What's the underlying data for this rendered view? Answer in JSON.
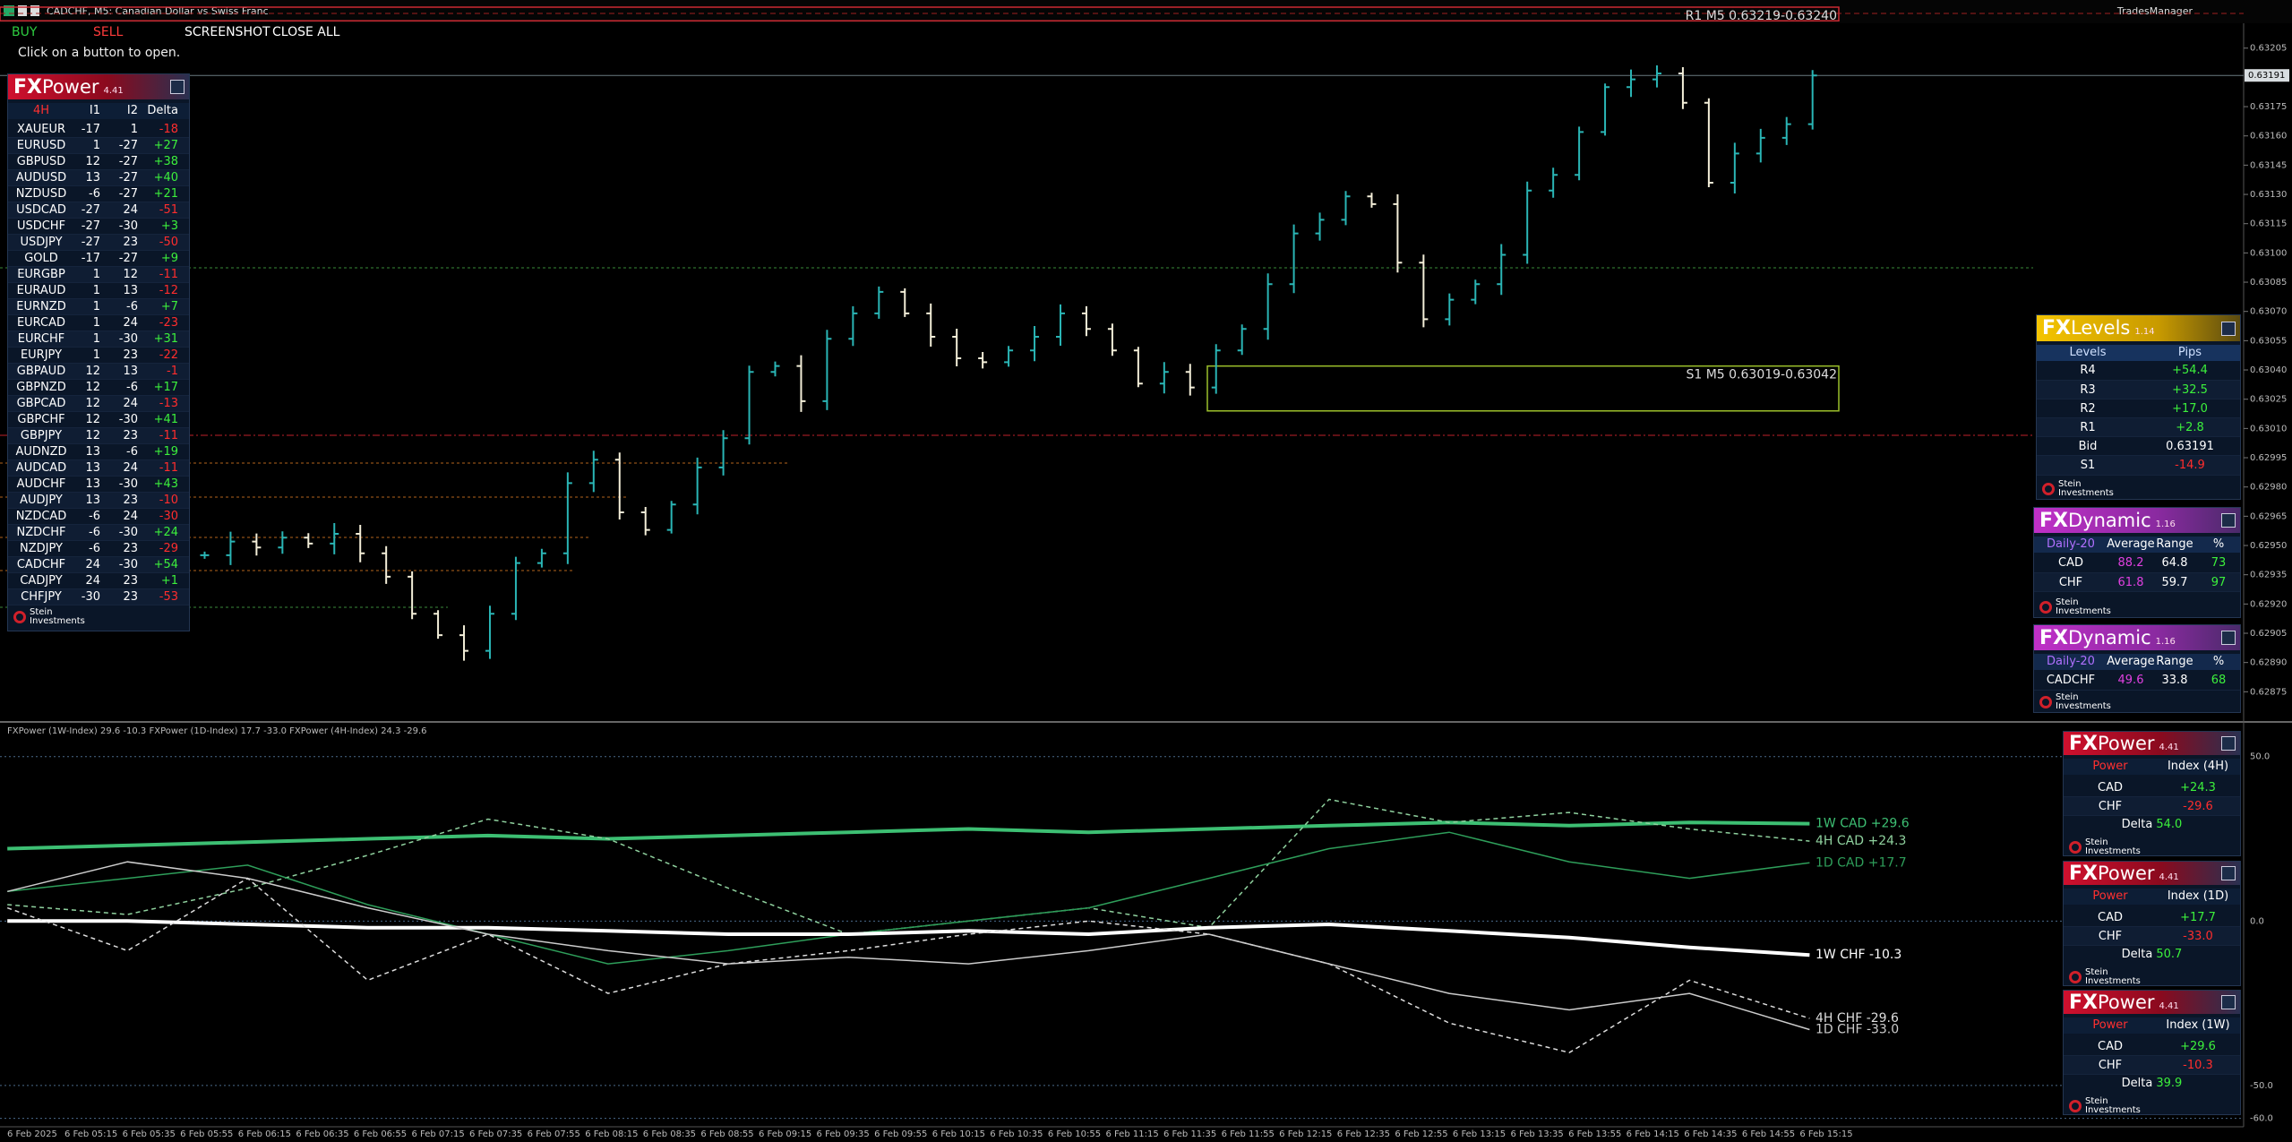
{
  "window": {
    "title": "CADCHF, M5:  Canadian Dollar vs Swiss Franc",
    "plugin": "TradesManager"
  },
  "toolbar": {
    "buttons": [
      "BUY",
      "SELL",
      "SCREENSHOT",
      "CLOSE ALL"
    ],
    "hint": "Click on a button to open."
  },
  "chart_data": [
    {
      "type": "ohlc",
      "ylim": [
        0.6286,
        0.63226
      ],
      "yticks": [
        0.63205,
        0.63175,
        {
          "value": 0.6316,
          "label": "0.63160"
        },
        0.63145,
        {
          "value": 0.6313,
          "label": "0.63130"
        },
        0.63115,
        {
          "value": 0.631,
          "label": "0.63100"
        },
        0.63085,
        {
          "value": 0.6307,
          "label": "0.63070"
        },
        0.63055,
        {
          "value": 0.6304,
          "label": "0.63040"
        },
        0.63025,
        {
          "value": 0.6301,
          "label": "0.63010"
        },
        0.62995,
        {
          "value": 0.6298,
          "label": "0.62980"
        },
        0.62965,
        {
          "value": 0.6295,
          "label": "0.62950"
        },
        0.62935,
        {
          "value": 0.6292,
          "label": "0.62920"
        },
        0.62905,
        {
          "value": 0.6289,
          "label": "0.62890"
        },
        0.62875
      ],
      "bid": 0.63191,
      "levels": [
        {
          "label": "R1 M5 0.63219-0.63240",
          "low": 0.63219,
          "high": 0.6324
        },
        {
          "label": "S1 M5 0.63019-0.63042",
          "low": 0.63019,
          "high": 0.63042
        }
      ],
      "values": [
        0.62945,
        0.62952,
        0.62949,
        0.62954,
        0.62951,
        0.62956,
        0.62946,
        0.62934,
        0.62915,
        0.62904,
        0.62896,
        0.62915,
        0.62941,
        0.62946,
        0.62982,
        0.62994,
        0.62967,
        0.62958,
        0.62971,
        0.6299,
        0.63005,
        0.63039,
        0.63042,
        0.63024,
        0.63056,
        0.63069,
        0.6308,
        0.63069,
        0.63057,
        0.63046,
        0.63044,
        0.6305,
        0.63057,
        0.63069,
        0.63061,
        0.6305,
        0.63033,
        0.63039,
        0.63031,
        0.6305,
        0.63061,
        0.63084,
        0.6311,
        0.63117,
        0.63129,
        0.63125,
        0.63095,
        0.63066,
        0.63076,
        0.63084,
        0.63099,
        0.63132,
        0.6314,
        0.63162,
        0.63185,
        0.63189,
        0.63192,
        0.63177,
        0.63136,
        0.63151,
        0.63159,
        0.63166,
        0.63191
      ],
      "x_labels": [
        "6 Feb 2025",
        "6 Feb 05:15",
        "6 Feb 05:35",
        "6 Feb 05:55",
        "6 Feb 06:15",
        "6 Feb 06:35",
        "6 Feb 06:55",
        "6 Feb 07:15",
        "6 Feb 07:35",
        "6 Feb 07:55",
        "6 Feb 08:15",
        "6 Feb 08:35",
        "6 Feb 08:55",
        "6 Feb 09:15",
        "6 Feb 09:35",
        "6 Feb 09:55",
        "6 Feb 10:15",
        "6 Feb 10:35",
        "6 Feb 10:55",
        "6 Feb 11:15",
        "6 Feb 11:35",
        "6 Feb 11:55",
        "6 Feb 12:15",
        "6 Feb 12:35",
        "6 Feb 12:55",
        "6 Feb 13:15",
        "6 Feb 13:35",
        "6 Feb 13:55",
        "6 Feb 14:15",
        "6 Feb 14:35",
        "6 Feb 14:55",
        "6 Feb 15:15"
      ]
    },
    {
      "type": "line",
      "title": "FXPower (1W-Index) 29.6 -10.3 FXPower (1D-Index) 17.7 -33.0 FXPower (4H-Index) 24.3 -29.6",
      "ylim": [
        -62,
        60
      ],
      "yticks": [
        {
          "value": 50,
          "label": "50.0"
        },
        {
          "value": 0,
          "label": "0.0"
        },
        {
          "value": -50,
          "label": "-50.0"
        },
        {
          "value": -60,
          "label": "-60.0"
        }
      ],
      "series": [
        {
          "name": "1W CAD +29.6",
          "color": "#3dbf73",
          "line_width": 4,
          "dashed": false,
          "values": [
            22,
            23,
            24,
            25,
            26,
            25,
            26,
            27,
            28,
            27,
            28,
            29,
            30,
            29,
            30,
            29.6
          ]
        },
        {
          "name": "4H CAD +24.3",
          "color": "#8fd19e",
          "line_width": 1.5,
          "dashed": true,
          "values": [
            5,
            2,
            10,
            20,
            31,
            25,
            10,
            -4,
            0,
            4,
            -2,
            37,
            30,
            33,
            28,
            24.3
          ]
        },
        {
          "name": "1D CAD +17.7",
          "color": "#2e9e5a",
          "line_width": 1.5,
          "dashed": false,
          "values": [
            9,
            13,
            17,
            5,
            -4,
            -13,
            -9,
            -4,
            0,
            4,
            13,
            22,
            27,
            18,
            13,
            17.7
          ]
        },
        {
          "name": "1W CHF -10.3",
          "color": "#ffffff",
          "line_width": 4,
          "dashed": false,
          "values": [
            0,
            0,
            -1,
            -2,
            -2,
            -3,
            -4,
            -4,
            -3,
            -4,
            -2,
            -1,
            -3,
            -5,
            -8,
            -10.3
          ]
        },
        {
          "name": "4H CHF -29.6",
          "color": "#dddddd",
          "line_width": 1.5,
          "dashed": true,
          "values": [
            4,
            -9,
            13,
            -18,
            -4,
            -22,
            -13,
            -9,
            -4,
            0,
            -4,
            -13,
            -31,
            -40,
            -18,
            -29.6
          ]
        },
        {
          "name": "1D CHF -33.0",
          "color": "#cccccc",
          "line_width": 1.5,
          "dashed": false,
          "values": [
            9,
            18,
            13,
            4,
            -4,
            -9,
            -13,
            -11,
            -13,
            -9,
            -4,
            -13,
            -22,
            -27,
            -22,
            -33
          ]
        }
      ]
    }
  ],
  "fxpower_table": {
    "brand": "FX",
    "title": "Power",
    "version": "4.41",
    "columns": [
      "4H",
      "I1",
      "I2",
      "Delta"
    ],
    "rows": [
      [
        "XAUEUR",
        "-17",
        "1",
        "-18"
      ],
      [
        "EURUSD",
        "1",
        "-27",
        "+27"
      ],
      [
        "GBPUSD",
        "12",
        "-27",
        "+38"
      ],
      [
        "AUDUSD",
        "13",
        "-27",
        "+40"
      ],
      [
        "NZDUSD",
        "-6",
        "-27",
        "+21"
      ],
      [
        "USDCAD",
        "-27",
        "24",
        "-51"
      ],
      [
        "USDCHF",
        "-27",
        "-30",
        "+3"
      ],
      [
        "USDJPY",
        "-27",
        "23",
        "-50"
      ],
      [
        "GOLD",
        "-17",
        "-27",
        "+9"
      ],
      [
        "EURGBP",
        "1",
        "12",
        "-11"
      ],
      [
        "EURAUD",
        "1",
        "13",
        "-12"
      ],
      [
        "EURNZD",
        "1",
        "-6",
        "+7"
      ],
      [
        "EURCAD",
        "1",
        "24",
        "-23"
      ],
      [
        "EURCHF",
        "1",
        "-30",
        "+31"
      ],
      [
        "EURJPY",
        "1",
        "23",
        "-22"
      ],
      [
        "GBPAUD",
        "12",
        "13",
        "-1"
      ],
      [
        "GBPNZD",
        "12",
        "-6",
        "+17"
      ],
      [
        "GBPCAD",
        "12",
        "24",
        "-13"
      ],
      [
        "GBPCHF",
        "12",
        "-30",
        "+41"
      ],
      [
        "GBPJPY",
        "12",
        "23",
        "-11"
      ],
      [
        "AUDNZD",
        "13",
        "-6",
        "+19"
      ],
      [
        "AUDCAD",
        "13",
        "24",
        "-11"
      ],
      [
        "AUDCHF",
        "13",
        "-30",
        "+43"
      ],
      [
        "AUDJPY",
        "13",
        "23",
        "-10"
      ],
      [
        "NZDCAD",
        "-6",
        "24",
        "-30"
      ],
      [
        "NZDCHF",
        "-6",
        "-30",
        "+24"
      ],
      [
        "NZDJPY",
        "-6",
        "23",
        "-29"
      ],
      [
        "CADCHF",
        "24",
        "-30",
        "+54"
      ],
      [
        "CADJPY",
        "24",
        "23",
        "+1"
      ],
      [
        "CHFJPY",
        "-30",
        "23",
        "-53"
      ]
    ],
    "footer": "Stein Investments"
  },
  "fxlevels": {
    "brand": "FX",
    "title": "Levels",
    "version": "1.14",
    "columns": [
      "Levels",
      "Pips"
    ],
    "rows": [
      [
        "R4",
        "+54.4"
      ],
      [
        "R3",
        "+32.5"
      ],
      [
        "R2",
        "+17.0"
      ],
      [
        "R1",
        "+2.8"
      ],
      [
        "Bid",
        "0.63191"
      ],
      [
        "S1",
        "-14.9"
      ]
    ],
    "footer": "Stein Investments"
  },
  "fxdynamic": [
    {
      "brand": "FX",
      "title": "Dynamic",
      "version": "1.16",
      "columns": [
        "Daily-20",
        "Average",
        "Range",
        "%"
      ],
      "rows": [
        [
          "CAD",
          "88.2",
          "64.8",
          "73"
        ],
        [
          "CHF",
          "61.8",
          "59.7",
          "97"
        ]
      ],
      "footer": "Stein Investments"
    },
    {
      "brand": "FX",
      "title": "Dynamic",
      "version": "1.16",
      "columns": [
        "Daily-20",
        "Average",
        "Range",
        "%"
      ],
      "rows": [
        [
          "CADCHF",
          "49.6",
          "33.8",
          "68"
        ]
      ],
      "footer": "Stein Investments"
    }
  ],
  "fxpower_panels": [
    {
      "brand": "FX",
      "title": "Power",
      "version": "4.41",
      "columns": [
        "Power",
        "Index (4H)"
      ],
      "rows": [
        [
          "CAD",
          "+24.3"
        ],
        [
          "CHF",
          "-29.6"
        ]
      ],
      "delta": "Delta",
      "delta_value": "54.0",
      "footer": "Stein Investments"
    },
    {
      "brand": "FX",
      "title": "Power",
      "version": "4.41",
      "columns": [
        "Power",
        "Index (1D)"
      ],
      "rows": [
        [
          "CAD",
          "+17.7"
        ],
        [
          "CHF",
          "-33.0"
        ]
      ],
      "delta": "Delta",
      "delta_value": "50.7",
      "footer": "Stein Investments"
    },
    {
      "brand": "FX",
      "title": "Power",
      "version": "4.41",
      "columns": [
        "Power",
        "Index (1W)"
      ],
      "rows": [
        [
          "CAD",
          "+29.6"
        ],
        [
          "CHF",
          "-10.3"
        ]
      ],
      "delta": "Delta",
      "delta_value": "39.9",
      "footer": "Stein Investments"
    }
  ]
}
